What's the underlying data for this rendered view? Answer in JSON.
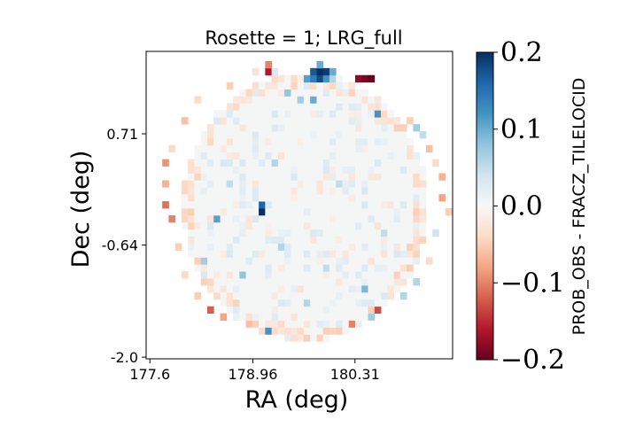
{
  "chart_data": {
    "type": "heatmap",
    "title": "Rosette = 1; LRG_full",
    "xlabel": "RA (deg)",
    "ylabel": "Dec (deg)",
    "xticks": [
      {
        "value": 177.6,
        "label": "177.6"
      },
      {
        "value": 178.96,
        "label": "178.96"
      },
      {
        "value": 180.31,
        "label": "180.31"
      }
    ],
    "yticks": [
      {
        "value": 0.71,
        "label": "0.71"
      },
      {
        "value": -0.64,
        "label": "-0.64"
      },
      {
        "value": -2.0,
        "label": "-2.0"
      }
    ],
    "xlim": [
      177.55,
      181.6
    ],
    "ylim": [
      -2.02,
      1.71
    ],
    "colorbar": {
      "label": "PROB_OBS - FRACZ_TILELOCID",
      "range": [
        -0.2,
        0.2
      ],
      "colormap": "RdBu",
      "ticks": [
        {
          "value": 0.2,
          "label": "0.2"
        },
        {
          "value": 0.1,
          "label": "0.1"
        },
        {
          "value": 0.0,
          "label": "0.0"
        },
        {
          "value": -0.1,
          "label": "−0.1"
        },
        {
          "value": -0.2,
          "label": "−0.2"
        }
      ]
    },
    "field": {
      "center_ra": 179.65,
      "center_dec": -0.17,
      "radius_deg": 1.62,
      "bin_size_deg": 0.085,
      "background_value": 0.003
    },
    "cells": [
      {
        "ra": 180.55,
        "dec": 1.37,
        "value": -0.2
      },
      {
        "ra": 180.46,
        "dec": 1.37,
        "value": -0.19
      },
      {
        "ra": 180.38,
        "dec": 1.37,
        "value": -0.18
      },
      {
        "ra": 179.87,
        "dec": 1.46,
        "value": 0.2
      },
      {
        "ra": 179.95,
        "dec": 1.46,
        "value": 0.19
      },
      {
        "ra": 179.79,
        "dec": 1.46,
        "value": 0.17
      },
      {
        "ra": 179.87,
        "dec": 1.37,
        "value": 0.18
      },
      {
        "ra": 179.79,
        "dec": 1.37,
        "value": 0.14
      },
      {
        "ra": 179.95,
        "dec": 1.37,
        "value": 0.12
      },
      {
        "ra": 180.04,
        "dec": 1.46,
        "value": 0.1
      },
      {
        "ra": 179.7,
        "dec": 1.37,
        "value": 0.11
      },
      {
        "ra": 179.87,
        "dec": 1.54,
        "value": 0.1
      },
      {
        "ra": 180.04,
        "dec": 1.37,
        "value": 0.06
      },
      {
        "ra": 179.19,
        "dec": 1.46,
        "value": -0.16
      },
      {
        "ra": 179.19,
        "dec": 1.54,
        "value": -0.1
      },
      {
        "ra": 179.27,
        "dec": 1.46,
        "value": 0.03
      },
      {
        "ra": 179.44,
        "dec": 1.2,
        "value": 0.08
      },
      {
        "ra": 179.61,
        "dec": 1.12,
        "value": 0.07
      },
      {
        "ra": 179.78,
        "dec": 1.12,
        "value": 0.1
      },
      {
        "ra": 180.6,
        "dec": 0.95,
        "value": 0.12
      },
      {
        "ra": 181.0,
        "dec": 0.86,
        "value": -0.05
      },
      {
        "ra": 181.1,
        "dec": 0.78,
        "value": 0.07
      },
      {
        "ra": 181.18,
        "dec": 0.69,
        "value": 0.05
      },
      {
        "ra": 181.27,
        "dec": 0.52,
        "value": -0.06
      },
      {
        "ra": 181.35,
        "dec": 0.35,
        "value": -0.04
      },
      {
        "ra": 181.44,
        "dec": 0.18,
        "value": -0.07
      },
      {
        "ra": 181.44,
        "dec": -0.07,
        "value": -0.08
      },
      {
        "ra": 181.52,
        "dec": -0.24,
        "value": -0.05
      },
      {
        "ra": 181.35,
        "dec": -0.5,
        "value": 0.04
      },
      {
        "ra": 181.27,
        "dec": -0.84,
        "value": -0.04
      },
      {
        "ra": 181.1,
        "dec": -1.1,
        "value": 0.06
      },
      {
        "ra": 180.93,
        "dec": -1.27,
        "value": 0.06
      },
      {
        "ra": 180.6,
        "dec": -1.44,
        "value": -0.13
      },
      {
        "ra": 180.51,
        "dec": -1.52,
        "value": 0.07
      },
      {
        "ra": 180.26,
        "dec": -1.61,
        "value": -0.1
      },
      {
        "ra": 179.92,
        "dec": -1.69,
        "value": -0.05
      },
      {
        "ra": 179.58,
        "dec": -1.69,
        "value": -0.04
      },
      {
        "ra": 179.16,
        "dec": -1.69,
        "value": 0.12
      },
      {
        "ra": 178.9,
        "dec": -1.61,
        "value": -0.06
      },
      {
        "ra": 178.56,
        "dec": -1.52,
        "value": -0.08
      },
      {
        "ra": 178.39,
        "dec": -1.44,
        "value": -0.12
      },
      {
        "ra": 178.22,
        "dec": -1.27,
        "value": -0.05
      },
      {
        "ra": 178.05,
        "dec": -1.01,
        "value": -0.04
      },
      {
        "ra": 177.94,
        "dec": -0.67,
        "value": -0.05
      },
      {
        "ra": 177.85,
        "dec": -0.33,
        "value": -0.1
      },
      {
        "ra": 177.77,
        "dec": -0.16,
        "value": -0.11
      },
      {
        "ra": 177.77,
        "dec": 0.1,
        "value": -0.07
      },
      {
        "ra": 177.77,
        "dec": 0.35,
        "value": -0.09
      },
      {
        "ra": 177.85,
        "dec": 0.52,
        "value": -0.04
      },
      {
        "ra": 178.02,
        "dec": 0.86,
        "value": -0.06
      },
      {
        "ra": 178.27,
        "dec": 1.12,
        "value": -0.04
      },
      {
        "ra": 178.64,
        "dec": 1.29,
        "value": -0.05
      },
      {
        "ra": 178.97,
        "dec": 1.46,
        "value": -0.03
      },
      {
        "ra": 179.1,
        "dec": -0.24,
        "value": 0.2
      },
      {
        "ra": 179.1,
        "dec": -0.16,
        "value": 0.16
      },
      {
        "ra": 178.5,
        "dec": -0.33,
        "value": 0.11
      },
      {
        "ra": 178.84,
        "dec": -1.01,
        "value": 0.08
      },
      {
        "ra": 179.35,
        "dec": -0.67,
        "value": 0.06
      },
      {
        "ra": 179.95,
        "dec": -0.93,
        "value": 0.05
      },
      {
        "ra": 180.45,
        "dec": -1.18,
        "value": 0.09
      },
      {
        "ra": 180.72,
        "dec": -0.5,
        "value": 0.05
      },
      {
        "ra": 180.1,
        "dec": 0.1,
        "value": 0.05
      },
      {
        "ra": 179.27,
        "dec": 0.35,
        "value": 0.06
      },
      {
        "ra": 178.65,
        "dec": 0.1,
        "value": 0.05
      },
      {
        "ra": 179.7,
        "dec": -1.35,
        "value": 0.06
      },
      {
        "ra": 178.35,
        "dec": -0.84,
        "value": 0.07
      }
    ]
  }
}
